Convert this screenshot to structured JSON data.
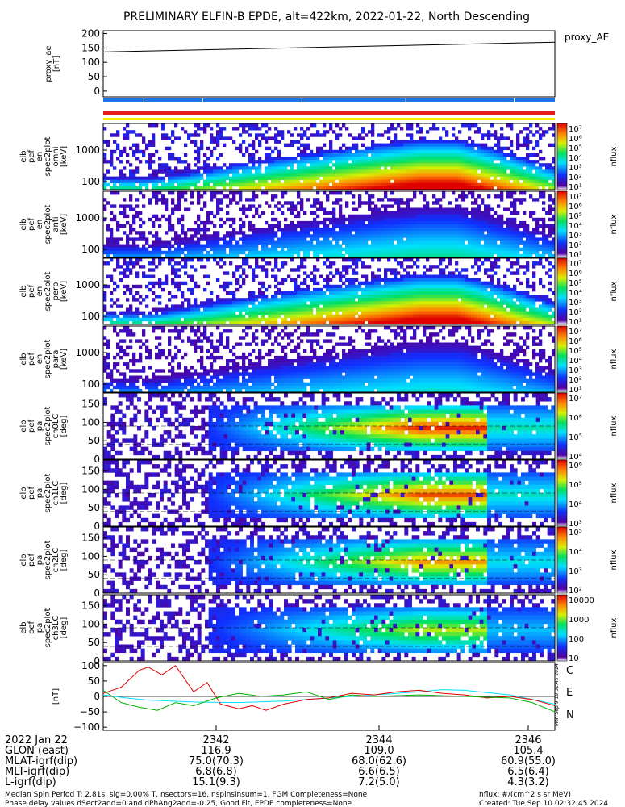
{
  "title": "PRELIMINARY ELFIN-B EPDE, alt=422km, 2022-01-22, North Descending",
  "colors": {
    "ae_line": "#000000",
    "bar_blue": "#1a73e8",
    "bar_red": "#e41a1c",
    "bar_yellow": "#ffe600",
    "mag_c": "#00e0ff",
    "mag_e": "#e00000",
    "mag_n": "#00b000"
  },
  "chart_data": [
    {
      "type": "line",
      "panel": "proxy_ae",
      "ylabel": "proxy_ae [nT]",
      "ylim": [
        -20,
        210
      ],
      "yticks": [
        "200",
        "150",
        "100",
        "50",
        "0"
      ],
      "legend": "proxy_AE",
      "series": [
        {
          "x": [
            0,
            1
          ],
          "values": [
            136,
            170
          ]
        }
      ]
    },
    {
      "type": "heatmap",
      "panel": "en_spectra",
      "rows": [
        {
          "label": [
            "elb",
            "pef",
            "en",
            "spec2plot",
            "omni",
            "[keV]"
          ],
          "yticks": [
            "1000",
            "100"
          ],
          "cbar": [
            "10⁷",
            "10⁶",
            "10⁵",
            "10⁴",
            "10³",
            "10²",
            "10¹"
          ],
          "cbar_label": "nflux",
          "peak": 1.0
        },
        {
          "label": [
            "elb",
            "pef",
            "en",
            "spec2plot",
            "anti",
            "[keV]"
          ],
          "yticks": [
            "1000",
            "100"
          ],
          "cbar": [
            "10⁷",
            "10⁶",
            "10⁵",
            "10⁴",
            "10³",
            "10²",
            "10¹"
          ],
          "cbar_label": "nflux",
          "peak": 0.55
        },
        {
          "label": [
            "elb",
            "pef",
            "en",
            "spec2plot",
            "perp",
            "[keV]"
          ],
          "yticks": [
            "1000",
            "100"
          ],
          "cbar": [
            "10⁷",
            "10⁶",
            "10⁵",
            "10⁴",
            "10³",
            "10²",
            "10¹"
          ],
          "cbar_label": "nflux",
          "peak": 1.0
        },
        {
          "label": [
            "elb",
            "pef",
            "en",
            "spec2plot",
            "para",
            "[keV]"
          ],
          "yticks": [
            "1000",
            "100"
          ],
          "cbar": [
            "10⁷",
            "10⁶",
            "10⁵",
            "10⁴",
            "10³",
            "10²",
            "10¹"
          ],
          "cbar_label": "nflux",
          "peak": 0.5
        }
      ]
    },
    {
      "type": "heatmap",
      "panel": "pa_spectra",
      "rows": [
        {
          "label": [
            "elb",
            "pef",
            "pa",
            "spec2plot",
            "ch0LC",
            "[deg]"
          ],
          "yticks": [
            "150",
            "100",
            "50",
            "0"
          ],
          "cbar": [
            "10⁷",
            "10⁶",
            "10⁵",
            "10⁴"
          ],
          "cbar_label": "nflux",
          "peak": 0.9
        },
        {
          "label": [
            "elb",
            "pef",
            "pa",
            "spec2plot",
            "ch1LC",
            "[deg]"
          ],
          "yticks": [
            "150",
            "100",
            "50",
            "0"
          ],
          "cbar": [
            "10⁶",
            "10⁵",
            "10⁴",
            "10³"
          ],
          "cbar_label": "nflux",
          "peak": 0.85
        },
        {
          "label": [
            "elb",
            "pef",
            "pa",
            "spec2plot",
            "ch2LC",
            "[deg]"
          ],
          "yticks": [
            "150",
            "100",
            "50",
            "0"
          ],
          "cbar": [
            "10⁵",
            "10⁴",
            "10³",
            "10²"
          ],
          "cbar_label": "nflux",
          "peak": 0.75
        },
        {
          "label": [
            "elb",
            "pef",
            "pa",
            "spec2plot",
            "ch3LC",
            "[deg]"
          ],
          "yticks": [
            "150",
            "100",
            "50",
            "0"
          ],
          "cbar": [
            "10000",
            "1000",
            "100",
            "10"
          ],
          "cbar_label": "nflux",
          "peak": 0.6
        }
      ]
    },
    {
      "type": "line",
      "panel": "magnetic",
      "ylabel": "[nT]",
      "ylim": [
        -110,
        110
      ],
      "yticks": [
        "100",
        "50",
        "0",
        "−50",
        "−100"
      ],
      "legend": [
        "C",
        "E",
        "N"
      ],
      "series": [
        {
          "name": "C",
          "x": [
            0,
            0.05,
            0.1,
            0.2,
            0.3,
            0.4,
            0.5,
            0.6,
            0.7,
            0.75,
            0.8,
            0.9,
            1.0
          ],
          "values": [
            5,
            -5,
            -12,
            -18,
            -20,
            -15,
            -5,
            5,
            15,
            22,
            20,
            5,
            -25
          ]
        },
        {
          "name": "E",
          "x": [
            0,
            0.04,
            0.08,
            0.1,
            0.13,
            0.16,
            0.2,
            0.23,
            0.26,
            0.3,
            0.33,
            0.36,
            0.4,
            0.45,
            0.5,
            0.55,
            0.6,
            0.65,
            0.7,
            0.75,
            0.8,
            0.85,
            0.9,
            0.95,
            1.0
          ],
          "values": [
            10,
            30,
            85,
            95,
            70,
            100,
            15,
            45,
            -25,
            -40,
            -30,
            -45,
            -25,
            -10,
            -5,
            10,
            5,
            15,
            20,
            10,
            5,
            -5,
            0,
            -10,
            -30
          ]
        },
        {
          "name": "N",
          "x": [
            0,
            0.04,
            0.08,
            0.12,
            0.16,
            0.2,
            0.25,
            0.3,
            0.35,
            0.4,
            0.45,
            0.5,
            0.55,
            0.6,
            0.7,
            0.8,
            0.9,
            0.95,
            1.0
          ],
          "values": [
            20,
            -20,
            -35,
            -45,
            -20,
            -30,
            -5,
            10,
            0,
            5,
            15,
            -10,
            5,
            0,
            5,
            0,
            -5,
            -20,
            -50
          ]
        }
      ]
    }
  ],
  "footer": {
    "rows": [
      {
        "label": "2022 Jan 22",
        "values": [
          "2342",
          "2344",
          "2346"
        ]
      },
      {
        "label": "GLON (east)",
        "values": [
          "116.9",
          "109.0",
          "105.4"
        ]
      },
      {
        "label": "MLAT-igrf(dip)",
        "values": [
          "75.0(70.3)",
          "68.0(62.6)",
          "60.9(55.0)"
        ]
      },
      {
        "label": "MLT-igrf(dip)",
        "values": [
          "6.8(6.8)",
          "6.6(6.5)",
          "6.5(6.4)"
        ]
      },
      {
        "label": "L-igrf(dip)",
        "values": [
          "15.1(9.3)",
          "7.2(5.0)",
          "4.3(3.2)"
        ]
      }
    ],
    "note1": "Median Spin Period T: 2.81s, sig=0.00% T, nsectors=16, nspinsinsum=1, FGM Completeness=None",
    "note2": "Phase delay values dSect2add=0 and dPhAng2add=-0.25, Good Fit, EPDE completeness=None",
    "units": "nflux: #/(cm^2 s sr MeV)",
    "created": "Created: Tue Sep 10 02:32:45 2024",
    "side_stamp": "Mon Sep 9 19:32:45 2024"
  }
}
